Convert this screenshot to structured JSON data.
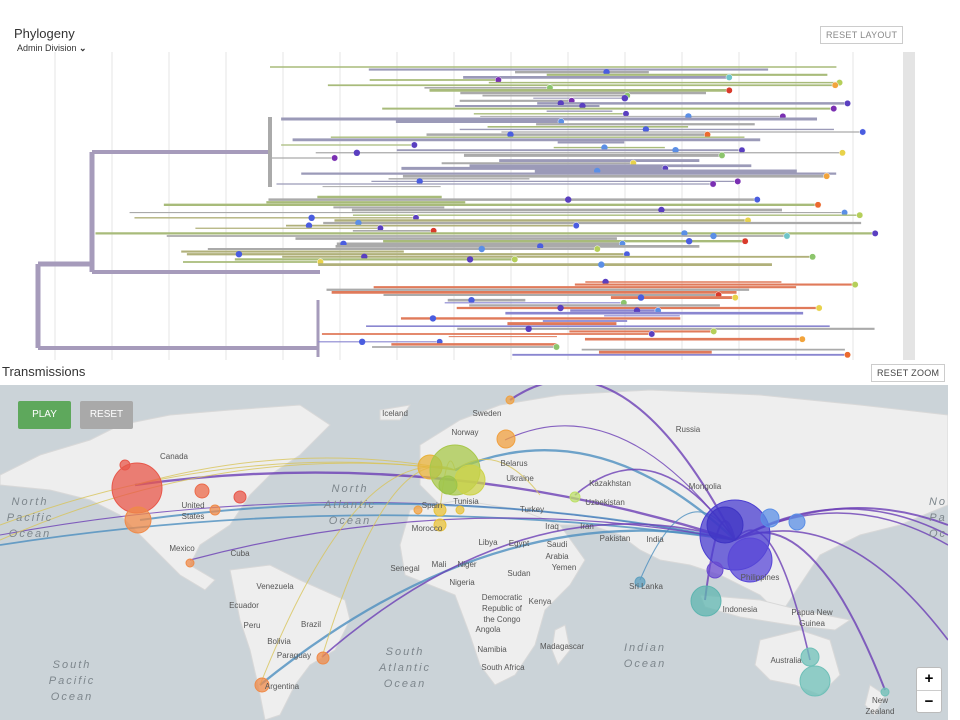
{
  "phylogeny": {
    "title": "Phylogeny",
    "color_by": "Admin Division",
    "reset_layout": "RESET LAYOUT"
  },
  "transmissions": {
    "title": "Transmissions",
    "reset_zoom": "RESET ZOOM",
    "play": "PLAY",
    "reset": "RESET",
    "zoom_in": "+",
    "zoom_out": "−",
    "labels": [
      "Iceland",
      "Sweden",
      "Norway",
      "Russia",
      "Canada",
      "Belarus",
      "Ukraine",
      "Mongolia",
      "Kazakhstan",
      "Uzbekistan",
      "Turkey",
      "Spain",
      "Tunisia",
      "Iraq",
      "Iran",
      "Pakistan",
      "India",
      "Morocco",
      "Libya",
      "Egypt",
      "Mexico",
      "Cuba",
      "Yemen",
      "Senegal",
      "Mali",
      "Niger",
      "Sudan",
      "Nigeria",
      "Sri Lanka",
      "Philippines",
      "Venezuela",
      "Ecuador",
      "Kenya",
      "Indonesia",
      "Peru",
      "Brazil",
      "Angola",
      "Bolivia",
      "Madagascar",
      "Paraguay",
      "Namibia",
      "South Africa",
      "Argentina",
      "Australia"
    ],
    "multiline_labels": [
      [
        "United",
        "States"
      ],
      [
        "Saudi",
        "Arabia"
      ],
      [
        "Democratic",
        "Republic of",
        "the Congo"
      ],
      [
        "Papua New",
        "Guinea"
      ],
      [
        "New",
        "Zealand"
      ]
    ],
    "ocean_labels": [
      [
        "North",
        "Pacific",
        "Ocean"
      ],
      [
        "North",
        "Atlantic",
        "Ocean"
      ],
      [
        "South",
        "Atlantic",
        "Ocean"
      ],
      [
        "Indian",
        "Ocean"
      ],
      [
        "South",
        "Pacific",
        "Ocean"
      ],
      [
        "No",
        "Pa",
        "Oc"
      ]
    ]
  }
}
